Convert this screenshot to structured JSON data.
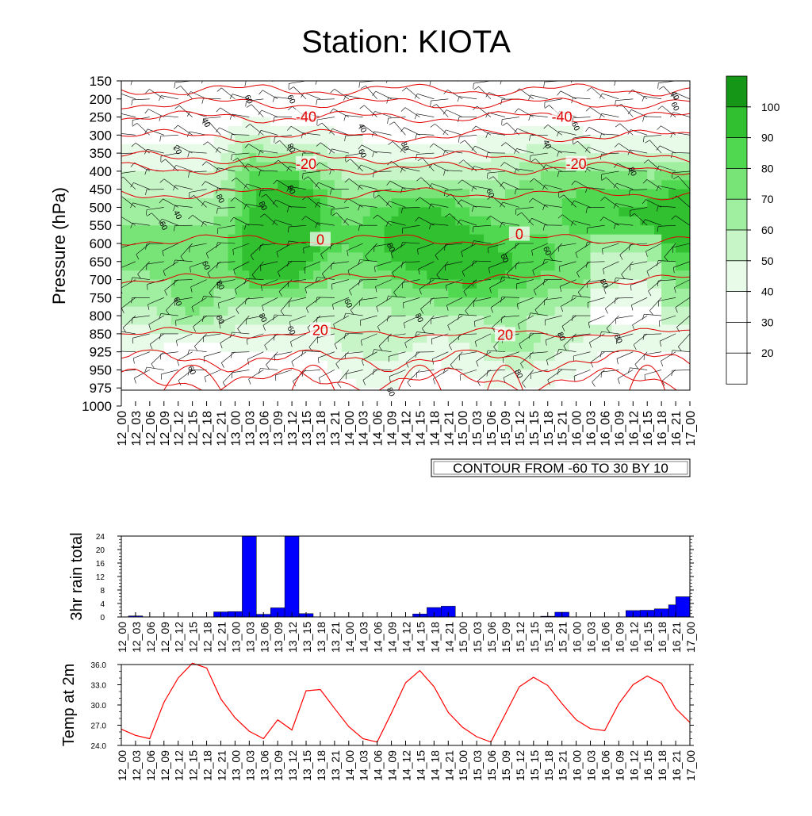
{
  "title": "Station: KIOTA",
  "time_labels": [
    "12_00",
    "12_03",
    "12_06",
    "12_09",
    "12_12",
    "12_15",
    "12_18",
    "12_21",
    "13_00",
    "13_03",
    "13_06",
    "13_09",
    "13_12",
    "13_15",
    "13_18",
    "13_21",
    "14_00",
    "14_03",
    "14_06",
    "14_09",
    "14_12",
    "14_15",
    "14_18",
    "14_21",
    "15_00",
    "15_03",
    "15_06",
    "15_09",
    "15_12",
    "15_15",
    "15_18",
    "15_21",
    "16_00",
    "16_03",
    "16_06",
    "16_09",
    "16_12",
    "16_15",
    "16_18",
    "16_21",
    "17_00"
  ],
  "chart_data": [
    {
      "type": "heatmap",
      "name": "relative-humidity-cross-section",
      "ylabel": "Pressure (hPa)",
      "pressure_levels": [
        150,
        200,
        250,
        300,
        350,
        400,
        450,
        500,
        550,
        600,
        650,
        700,
        750,
        800,
        850,
        925,
        950,
        975,
        1000
      ],
      "colorbar": {
        "levels": [
          20,
          30,
          40,
          50,
          60,
          70,
          80,
          90,
          100
        ],
        "label_texts": [
          "20",
          "30",
          "40",
          "50",
          "60",
          "70",
          "80",
          "90",
          "100"
        ],
        "colors": [
          "#ffffff",
          "#ffffff",
          "#ffffff",
          "#e8fae8",
          "#c8f5c8",
          "#a0eea0",
          "#78e478",
          "#50d850",
          "#30c030",
          "#169616"
        ]
      },
      "temperature_contours": {
        "note": "CONTOUR FROM -60 TO 30 BY 10",
        "labels": [
          {
            "text": "-40",
            "time": "13_15",
            "p": 250
          },
          {
            "text": "-40",
            "time": "15_21",
            "p": 250
          },
          {
            "text": "-20",
            "time": "13_15",
            "p": 380
          },
          {
            "text": "-20",
            "time": "16_00",
            "p": 380
          },
          {
            "text": "0",
            "time": "13_18",
            "p": 590
          },
          {
            "text": "0",
            "time": "15_12",
            "p": 575
          },
          {
            "text": "20",
            "time": "13_18",
            "p": 840
          },
          {
            "text": "20",
            "time": "15_09",
            "p": 855
          }
        ]
      },
      "rh_labels": [
        {
          "text": "60",
          "time": "13_03",
          "p": 200
        },
        {
          "text": "60",
          "time": "13_12",
          "p": 200
        },
        {
          "text": "40",
          "time": "16_21",
          "p": 190
        },
        {
          "text": "60",
          "time": "16_21",
          "p": 220
        },
        {
          "text": "40",
          "time": "12_18",
          "p": 265
        },
        {
          "text": "20",
          "time": "12_12",
          "p": 340
        },
        {
          "text": "80",
          "time": "13_12",
          "p": 335
        },
        {
          "text": "40",
          "time": "14_03",
          "p": 280
        },
        {
          "text": "60",
          "time": "14_03",
          "p": 350
        },
        {
          "text": "80",
          "time": "14_12",
          "p": 330
        },
        {
          "text": "40",
          "time": "15_18",
          "p": 325
        },
        {
          "text": "60",
          "time": "16_00",
          "p": 275
        },
        {
          "text": "80",
          "time": "16_12",
          "p": 400
        },
        {
          "text": "80",
          "time": "13_12",
          "p": 450
        },
        {
          "text": "80",
          "time": "12_21",
          "p": 475
        },
        {
          "text": "80",
          "time": "13_06",
          "p": 495
        },
        {
          "text": "60",
          "time": "15_06",
          "p": 460
        },
        {
          "text": "40",
          "time": "12_12",
          "p": 520
        },
        {
          "text": "60",
          "time": "12_09",
          "p": 550
        },
        {
          "text": "80",
          "time": "14_09",
          "p": 610
        },
        {
          "text": "60",
          "time": "15_09",
          "p": 640
        },
        {
          "text": "60",
          "time": "15_18",
          "p": 620
        },
        {
          "text": "60",
          "time": "12_18",
          "p": 660
        },
        {
          "text": "80",
          "time": "12_21",
          "p": 715
        },
        {
          "text": "80",
          "time": "16_06",
          "p": 710
        },
        {
          "text": "60",
          "time": "12_12",
          "p": 760
        },
        {
          "text": "60",
          "time": "14_00",
          "p": 765
        },
        {
          "text": "80",
          "time": "13_06",
          "p": 805
        },
        {
          "text": "80",
          "time": "12_21",
          "p": 810
        },
        {
          "text": "80",
          "time": "14_15",
          "p": 805
        },
        {
          "text": "60",
          "time": "13_12",
          "p": 840
        },
        {
          "text": "80",
          "time": "15_21",
          "p": 860
        },
        {
          "text": "80",
          "time": "16_09",
          "p": 870
        },
        {
          "text": "60",
          "time": "12_15",
          "p": 950
        },
        {
          "text": "80",
          "time": "15_12",
          "p": 955
        },
        {
          "text": "80",
          "time": "14_09",
          "p": 980
        }
      ]
    },
    {
      "type": "bar",
      "name": "3hr-rain-total",
      "ylabel": "3hr rain total",
      "ylim": [
        0,
        24
      ],
      "yticks": [
        "0",
        "4",
        "8",
        "12",
        "16",
        "20",
        "24"
      ],
      "values": [
        0,
        0.3,
        0,
        0,
        0,
        0,
        0,
        1.5,
        1.6,
        25,
        0.8,
        2.7,
        25,
        1.0,
        0,
        0,
        0,
        0,
        0,
        0,
        0,
        0.9,
        2.8,
        3.2,
        0,
        0,
        0,
        0,
        0,
        0,
        0.2,
        1.4,
        0,
        0,
        0,
        0,
        1.9,
        2.0,
        2.4,
        3.6,
        6.0
      ],
      "bar_color": "#0000ff"
    },
    {
      "type": "line",
      "name": "temp-at-2m",
      "ylabel": "Temp at 2m",
      "ylim": [
        24,
        36
      ],
      "yticks": [
        "24.0",
        "27.0",
        "30.0",
        "33.0",
        "36.0"
      ],
      "values": [
        26.4,
        25.5,
        25.0,
        30.4,
        34.0,
        36.2,
        35.5,
        30.9,
        28.1,
        26.1,
        25.0,
        27.8,
        26.3,
        32.1,
        32.3,
        29.5,
        26.8,
        25.0,
        24.5,
        28.8,
        33.3,
        35.1,
        32.7,
        28.9,
        26.7,
        25.3,
        24.5,
        28.6,
        32.7,
        34.1,
        32.9,
        30.2,
        27.8,
        26.5,
        26.2,
        30.2,
        33.0,
        34.3,
        33.2,
        29.5,
        27.4
      ],
      "line_color": "#ff0000"
    }
  ]
}
